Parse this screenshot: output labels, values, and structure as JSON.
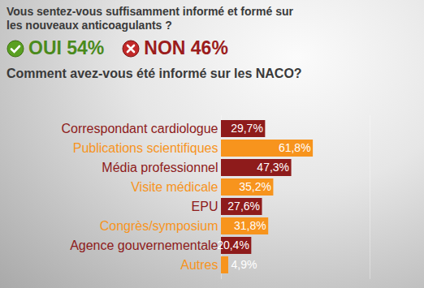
{
  "chart_data": {
    "type": "bar",
    "orientation": "horizontal",
    "title": "Vous sentez-vous suffisamment informé et formé sur les nouveaux anticoagulants ?",
    "annotations": [
      {
        "text": "OUI 54%",
        "color": "#4a8a1c"
      },
      {
        "text": "NON 46%",
        "color": "#9b1c1c"
      }
    ],
    "subtitle": "Comment avez-vous été informé sur les NACO?",
    "categories": [
      "Correspondant cardiologue",
      "Publications scientifiques",
      "Média professionnel",
      "Visite médicale",
      "EPU",
      "Congrès/symposium",
      "Agence gouvernementale",
      "Autres"
    ],
    "values": [
      29.7,
      61.8,
      47.3,
      35.2,
      27.6,
      31.8,
      20.4,
      4.9
    ],
    "value_labels": [
      "29,7%",
      "61,8%",
      "47,3%",
      "35,2%",
      "27,6%",
      "31,8%",
      "20,4%",
      "4,9%"
    ],
    "colors": [
      "#8e1b1b",
      "#f7941d",
      "#8e1b1b",
      "#f7941d",
      "#8e1b1b",
      "#f7941d",
      "#8e1b1b",
      "#f7941d"
    ],
    "xlim": [
      0,
      100
    ],
    "data_labels": true,
    "tick_labels": "y"
  }
}
